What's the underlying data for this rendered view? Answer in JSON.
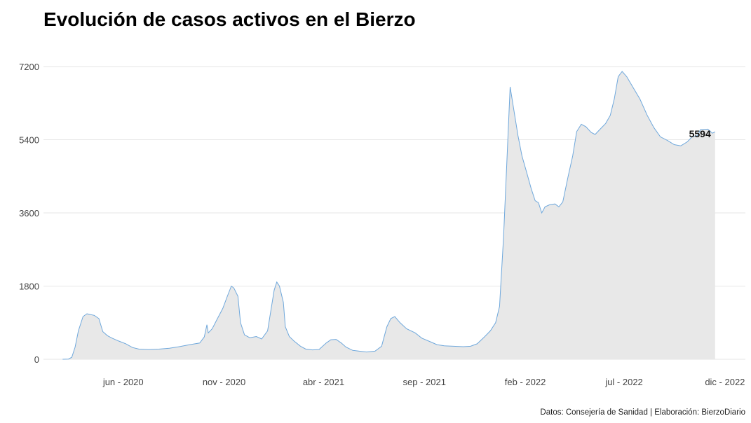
{
  "title": "Evolución de casos activos en el Bierzo",
  "source": "Datos: Consejería de Sanidad | Elaboración: BierzoDiario",
  "end_label": "5594",
  "colors": {
    "line": "#6fa8dc",
    "area": "#e8e8e8",
    "grid": "#e6e6e6"
  },
  "chart_data": {
    "type": "area",
    "title": "Evolución de casos activos en el Bierzo",
    "xlabel": "",
    "ylabel": "",
    "ylim": [
      0,
      7200
    ],
    "xlim": [
      "2020-02-01",
      "2023-01-01"
    ],
    "yticks": [
      0,
      1800,
      3600,
      5400,
      7200
    ],
    "xticks": [
      {
        "date": "2020-06-01",
        "label": "jun - 2020"
      },
      {
        "date": "2020-11-01",
        "label": "nov - 2020"
      },
      {
        "date": "2021-04-01",
        "label": "abr - 2021"
      },
      {
        "date": "2021-09-01",
        "label": "sep - 2021"
      },
      {
        "date": "2022-02-01",
        "label": "feb - 2022"
      },
      {
        "date": "2022-07-01",
        "label": "jul - 2022"
      },
      {
        "date": "2022-12-01",
        "label": "dic - 2022"
      }
    ],
    "grid": true,
    "series": [
      {
        "points": [
          [
            "2020-03-01",
            0
          ],
          [
            "2020-03-10",
            5
          ],
          [
            "2020-03-15",
            50
          ],
          [
            "2020-03-20",
            300
          ],
          [
            "2020-03-25",
            700
          ],
          [
            "2020-04-01",
            1050
          ],
          [
            "2020-04-07",
            1120
          ],
          [
            "2020-04-12",
            1100
          ],
          [
            "2020-04-18",
            1080
          ],
          [
            "2020-04-25",
            1000
          ],
          [
            "2020-05-01",
            680
          ],
          [
            "2020-05-08",
            580
          ],
          [
            "2020-05-15",
            520
          ],
          [
            "2020-05-25",
            450
          ],
          [
            "2020-06-05",
            380
          ],
          [
            "2020-06-15",
            290
          ],
          [
            "2020-06-25",
            250
          ],
          [
            "2020-07-10",
            240
          ],
          [
            "2020-07-25",
            250
          ],
          [
            "2020-08-10",
            270
          ],
          [
            "2020-08-25",
            310
          ],
          [
            "2020-09-10",
            360
          ],
          [
            "2020-09-25",
            400
          ],
          [
            "2020-10-02",
            550
          ],
          [
            "2020-10-06",
            850
          ],
          [
            "2020-10-08",
            650
          ],
          [
            "2020-10-14",
            750
          ],
          [
            "2020-10-22",
            1000
          ],
          [
            "2020-10-30",
            1250
          ],
          [
            "2020-11-06",
            1550
          ],
          [
            "2020-11-12",
            1800
          ],
          [
            "2020-11-16",
            1750
          ],
          [
            "2020-11-22",
            1550
          ],
          [
            "2020-11-26",
            900
          ],
          [
            "2020-12-02",
            600
          ],
          [
            "2020-12-10",
            530
          ],
          [
            "2020-12-20",
            560
          ],
          [
            "2020-12-28",
            500
          ],
          [
            "2021-01-06",
            700
          ],
          [
            "2021-01-11",
            1200
          ],
          [
            "2021-01-16",
            1700
          ],
          [
            "2021-01-20",
            1900
          ],
          [
            "2021-01-24",
            1800
          ],
          [
            "2021-01-30",
            1400
          ],
          [
            "2021-02-02",
            800
          ],
          [
            "2021-02-08",
            560
          ],
          [
            "2021-02-15",
            450
          ],
          [
            "2021-02-25",
            320
          ],
          [
            "2021-03-05",
            250
          ],
          [
            "2021-03-15",
            230
          ],
          [
            "2021-03-25",
            240
          ],
          [
            "2021-04-05",
            400
          ],
          [
            "2021-04-12",
            480
          ],
          [
            "2021-04-20",
            490
          ],
          [
            "2021-04-28",
            400
          ],
          [
            "2021-05-05",
            300
          ],
          [
            "2021-05-15",
            220
          ],
          [
            "2021-05-25",
            200
          ],
          [
            "2021-06-05",
            180
          ],
          [
            "2021-06-18",
            200
          ],
          [
            "2021-06-28",
            320
          ],
          [
            "2021-07-06",
            800
          ],
          [
            "2021-07-12",
            1000
          ],
          [
            "2021-07-18",
            1050
          ],
          [
            "2021-07-26",
            900
          ],
          [
            "2021-08-05",
            750
          ],
          [
            "2021-08-18",
            650
          ],
          [
            "2021-08-28",
            520
          ],
          [
            "2021-09-10",
            430
          ],
          [
            "2021-09-20",
            360
          ],
          [
            "2021-10-01",
            330
          ],
          [
            "2021-10-15",
            320
          ],
          [
            "2021-10-30",
            310
          ],
          [
            "2021-11-10",
            320
          ],
          [
            "2021-11-20",
            380
          ],
          [
            "2021-12-01",
            550
          ],
          [
            "2021-12-10",
            700
          ],
          [
            "2021-12-18",
            900
          ],
          [
            "2021-12-24",
            1300
          ],
          [
            "2021-12-30",
            3000
          ],
          [
            "2022-01-05",
            5200
          ],
          [
            "2022-01-09",
            6700
          ],
          [
            "2022-01-15",
            6100
          ],
          [
            "2022-01-21",
            5500
          ],
          [
            "2022-01-27",
            5000
          ],
          [
            "2022-02-03",
            4600
          ],
          [
            "2022-02-10",
            4200
          ],
          [
            "2022-02-16",
            3900
          ],
          [
            "2022-02-21",
            3850
          ],
          [
            "2022-02-26",
            3600
          ],
          [
            "2022-03-03",
            3750
          ],
          [
            "2022-03-10",
            3800
          ],
          [
            "2022-03-18",
            3820
          ],
          [
            "2022-03-24",
            3750
          ],
          [
            "2022-03-30",
            3870
          ],
          [
            "2022-04-07",
            4500
          ],
          [
            "2022-04-14",
            5000
          ],
          [
            "2022-04-20",
            5600
          ],
          [
            "2022-04-27",
            5780
          ],
          [
            "2022-05-04",
            5720
          ],
          [
            "2022-05-12",
            5580
          ],
          [
            "2022-05-18",
            5530
          ],
          [
            "2022-05-25",
            5650
          ],
          [
            "2022-06-03",
            5800
          ],
          [
            "2022-06-10",
            6000
          ],
          [
            "2022-06-16",
            6400
          ],
          [
            "2022-06-22",
            6950
          ],
          [
            "2022-06-28",
            7080
          ],
          [
            "2022-07-05",
            6950
          ],
          [
            "2022-07-14",
            6700
          ],
          [
            "2022-07-25",
            6400
          ],
          [
            "2022-08-05",
            6000
          ],
          [
            "2022-08-15",
            5700
          ],
          [
            "2022-08-25",
            5470
          ],
          [
            "2022-09-05",
            5380
          ],
          [
            "2022-09-15",
            5280
          ],
          [
            "2022-09-25",
            5250
          ],
          [
            "2022-10-05",
            5350
          ],
          [
            "2022-10-12",
            5470
          ],
          [
            "2022-10-20",
            5500
          ],
          [
            "2022-10-25",
            5650
          ],
          [
            "2022-11-05",
            5660
          ],
          [
            "2022-11-12",
            5560
          ],
          [
            "2022-11-16",
            5594
          ]
        ]
      }
    ]
  }
}
